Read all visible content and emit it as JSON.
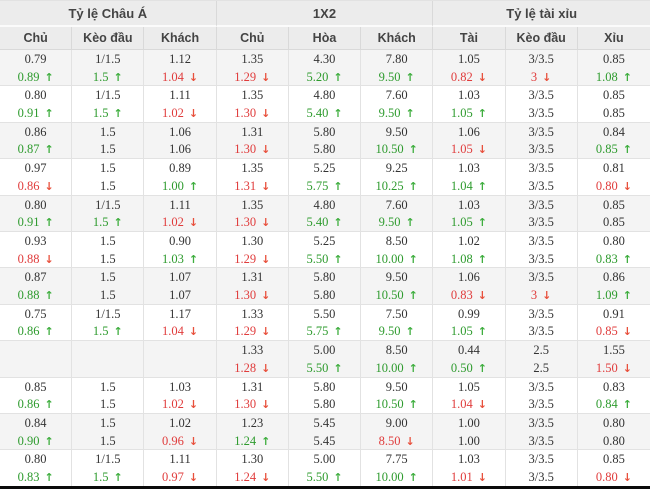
{
  "table": {
    "groups": [
      {
        "title": "Tỷ lệ Châu Á",
        "columns": [
          "Chủ",
          "Kèo đầu",
          "Khách"
        ]
      },
      {
        "title": "1X2",
        "columns": [
          "Chủ",
          "Hòa",
          "Khách"
        ]
      },
      {
        "title": "Tỷ lệ tài xỉu",
        "columns": [
          "Tài",
          "Kèo đầu",
          "Xỉu"
        ]
      }
    ],
    "icons": {
      "up_arrow": "↑",
      "down_arrow": "↓"
    },
    "colors": {
      "up_green": "#2e9b2e",
      "down_red": "#e03c3c",
      "text": "#333333",
      "header_bg": "#ececec",
      "alt_row_bg": "#f4f4f4",
      "border": "#e2e2e2",
      "bottom_bar": "#0a0a0a"
    },
    "rows": [
      {
        "cells": [
          {
            "top": "0.79",
            "bottom": "0.89",
            "trend": "up"
          },
          {
            "top": "1/1.5",
            "bottom": "1.5",
            "trend": "up"
          },
          {
            "top": "1.12",
            "bottom": "1.04",
            "trend": "down"
          },
          {
            "top": "1.35",
            "bottom": "1.29",
            "trend": "down"
          },
          {
            "top": "4.30",
            "bottom": "5.20",
            "trend": "up"
          },
          {
            "top": "7.80",
            "bottom": "9.50",
            "trend": "up"
          },
          {
            "top": "1.05",
            "bottom": "0.82",
            "trend": "down"
          },
          {
            "top": "3/3.5",
            "bottom": "3",
            "trend": "down"
          },
          {
            "top": "0.85",
            "bottom": "1.08",
            "trend": "up"
          }
        ]
      },
      {
        "cells": [
          {
            "top": "0.80",
            "bottom": "0.91",
            "trend": "up"
          },
          {
            "top": "1/1.5",
            "bottom": "1.5",
            "trend": "up"
          },
          {
            "top": "1.11",
            "bottom": "1.02",
            "trend": "down"
          },
          {
            "top": "1.35",
            "bottom": "1.30",
            "trend": "down"
          },
          {
            "top": "4.80",
            "bottom": "5.40",
            "trend": "up"
          },
          {
            "top": "7.60",
            "bottom": "9.50",
            "trend": "up"
          },
          {
            "top": "1.03",
            "bottom": "1.05",
            "trend": "up"
          },
          {
            "top": "3/3.5",
            "bottom": "3/3.5",
            "trend": null
          },
          {
            "top": "0.85",
            "bottom": "0.85",
            "trend": null
          }
        ]
      },
      {
        "cells": [
          {
            "top": "0.86",
            "bottom": "0.87",
            "trend": "up"
          },
          {
            "top": "1.5",
            "bottom": "1.5",
            "trend": null
          },
          {
            "top": "1.06",
            "bottom": "1.06",
            "trend": null
          },
          {
            "top": "1.31",
            "bottom": "1.30",
            "trend": "down"
          },
          {
            "top": "5.80",
            "bottom": "5.80",
            "trend": null
          },
          {
            "top": "9.50",
            "bottom": "10.50",
            "trend": "up"
          },
          {
            "top": "1.06",
            "bottom": "1.05",
            "trend": "down"
          },
          {
            "top": "3/3.5",
            "bottom": "3/3.5",
            "trend": null
          },
          {
            "top": "0.84",
            "bottom": "0.85",
            "trend": "up"
          }
        ]
      },
      {
        "cells": [
          {
            "top": "0.97",
            "bottom": "0.86",
            "trend": "down"
          },
          {
            "top": "1.5",
            "bottom": "1.5",
            "trend": null
          },
          {
            "top": "0.89",
            "bottom": "1.00",
            "trend": "up"
          },
          {
            "top": "1.35",
            "bottom": "1.31",
            "trend": "down"
          },
          {
            "top": "5.25",
            "bottom": "5.75",
            "trend": "up"
          },
          {
            "top": "9.25",
            "bottom": "10.25",
            "trend": "up"
          },
          {
            "top": "1.03",
            "bottom": "1.04",
            "trend": "up"
          },
          {
            "top": "3/3.5",
            "bottom": "3/3.5",
            "trend": null
          },
          {
            "top": "0.81",
            "bottom": "0.80",
            "trend": "down"
          }
        ]
      },
      {
        "cells": [
          {
            "top": "0.80",
            "bottom": "0.91",
            "trend": "up"
          },
          {
            "top": "1/1.5",
            "bottom": "1.5",
            "trend": "up"
          },
          {
            "top": "1.11",
            "bottom": "1.02",
            "trend": "down"
          },
          {
            "top": "1.35",
            "bottom": "1.30",
            "trend": "down"
          },
          {
            "top": "4.80",
            "bottom": "5.40",
            "trend": "up"
          },
          {
            "top": "7.60",
            "bottom": "9.50",
            "trend": "up"
          },
          {
            "top": "1.03",
            "bottom": "1.05",
            "trend": "up"
          },
          {
            "top": "3/3.5",
            "bottom": "3/3.5",
            "trend": null
          },
          {
            "top": "0.85",
            "bottom": "0.85",
            "trend": null
          }
        ]
      },
      {
        "cells": [
          {
            "top": "0.93",
            "bottom": "0.88",
            "trend": "down"
          },
          {
            "top": "1.5",
            "bottom": "1.5",
            "trend": null
          },
          {
            "top": "0.90",
            "bottom": "1.03",
            "trend": "up"
          },
          {
            "top": "1.30",
            "bottom": "1.29",
            "trend": "down"
          },
          {
            "top": "5.25",
            "bottom": "5.50",
            "trend": "up"
          },
          {
            "top": "8.50",
            "bottom": "10.00",
            "trend": "up"
          },
          {
            "top": "1.02",
            "bottom": "1.08",
            "trend": "up"
          },
          {
            "top": "3/3.5",
            "bottom": "3/3.5",
            "trend": null
          },
          {
            "top": "0.80",
            "bottom": "0.83",
            "trend": "up"
          }
        ]
      },
      {
        "cells": [
          {
            "top": "0.87",
            "bottom": "0.88",
            "trend": "up"
          },
          {
            "top": "1.5",
            "bottom": "1.5",
            "trend": null
          },
          {
            "top": "1.07",
            "bottom": "1.07",
            "trend": null
          },
          {
            "top": "1.31",
            "bottom": "1.30",
            "trend": "down"
          },
          {
            "top": "5.80",
            "bottom": "5.80",
            "trend": null
          },
          {
            "top": "9.50",
            "bottom": "10.50",
            "trend": "up"
          },
          {
            "top": "1.06",
            "bottom": "0.83",
            "trend": "down"
          },
          {
            "top": "3/3.5",
            "bottom": "3",
            "trend": "down"
          },
          {
            "top": "0.86",
            "bottom": "1.09",
            "trend": "up"
          }
        ]
      },
      {
        "cells": [
          {
            "top": "0.75",
            "bottom": "0.86",
            "trend": "up"
          },
          {
            "top": "1/1.5",
            "bottom": "1.5",
            "trend": "up"
          },
          {
            "top": "1.17",
            "bottom": "1.04",
            "trend": "down"
          },
          {
            "top": "1.33",
            "bottom": "1.29",
            "trend": "down"
          },
          {
            "top": "5.50",
            "bottom": "5.75",
            "trend": "up"
          },
          {
            "top": "7.50",
            "bottom": "9.50",
            "trend": "up"
          },
          {
            "top": "0.99",
            "bottom": "1.05",
            "trend": "up"
          },
          {
            "top": "3/3.5",
            "bottom": "3/3.5",
            "trend": null
          },
          {
            "top": "0.91",
            "bottom": "0.85",
            "trend": "down"
          }
        ]
      },
      {
        "cells": [
          {
            "top": "",
            "bottom": "",
            "trend": null
          },
          {
            "top": "",
            "bottom": "",
            "trend": null
          },
          {
            "top": "",
            "bottom": "",
            "trend": null
          },
          {
            "top": "1.33",
            "bottom": "1.28",
            "trend": "down"
          },
          {
            "top": "5.00",
            "bottom": "5.50",
            "trend": "up"
          },
          {
            "top": "8.50",
            "bottom": "10.00",
            "trend": "up"
          },
          {
            "top": "0.44",
            "bottom": "0.50",
            "trend": "up"
          },
          {
            "top": "2.5",
            "bottom": "2.5",
            "trend": null
          },
          {
            "top": "1.55",
            "bottom": "1.50",
            "trend": "down"
          }
        ]
      },
      {
        "cells": [
          {
            "top": "0.85",
            "bottom": "0.86",
            "trend": "up"
          },
          {
            "top": "1.5",
            "bottom": "1.5",
            "trend": null
          },
          {
            "top": "1.03",
            "bottom": "1.02",
            "trend": "down"
          },
          {
            "top": "1.31",
            "bottom": "1.30",
            "trend": "down"
          },
          {
            "top": "5.80",
            "bottom": "5.80",
            "trend": null
          },
          {
            "top": "9.50",
            "bottom": "10.50",
            "trend": "up"
          },
          {
            "top": "1.05",
            "bottom": "1.04",
            "trend": "down"
          },
          {
            "top": "3/3.5",
            "bottom": "3/3.5",
            "trend": null
          },
          {
            "top": "0.83",
            "bottom": "0.84",
            "trend": "up"
          }
        ]
      },
      {
        "cells": [
          {
            "top": "0.84",
            "bottom": "0.90",
            "trend": "up"
          },
          {
            "top": "1.5",
            "bottom": "1.5",
            "trend": null
          },
          {
            "top": "1.02",
            "bottom": "0.96",
            "trend": "down"
          },
          {
            "top": "1.23",
            "bottom": "1.24",
            "trend": "up"
          },
          {
            "top": "5.45",
            "bottom": "5.45",
            "trend": null
          },
          {
            "top": "9.00",
            "bottom": "8.50",
            "trend": "down"
          },
          {
            "top": "1.00",
            "bottom": "1.00",
            "trend": null
          },
          {
            "top": "3/3.5",
            "bottom": "3/3.5",
            "trend": null
          },
          {
            "top": "0.80",
            "bottom": "0.80",
            "trend": null
          }
        ]
      },
      {
        "cells": [
          {
            "top": "0.80",
            "bottom": "0.83",
            "trend": "up"
          },
          {
            "top": "1/1.5",
            "bottom": "1.5",
            "trend": "up"
          },
          {
            "top": "1.11",
            "bottom": "0.97",
            "trend": "down"
          },
          {
            "top": "1.30",
            "bottom": "1.24",
            "trend": "down"
          },
          {
            "top": "5.00",
            "bottom": "5.50",
            "trend": "up"
          },
          {
            "top": "7.75",
            "bottom": "10.00",
            "trend": "up"
          },
          {
            "top": "1.03",
            "bottom": "1.01",
            "trend": "down"
          },
          {
            "top": "3/3.5",
            "bottom": "3/3.5",
            "trend": null
          },
          {
            "top": "0.85",
            "bottom": "0.80",
            "trend": "down"
          }
        ]
      }
    ]
  }
}
